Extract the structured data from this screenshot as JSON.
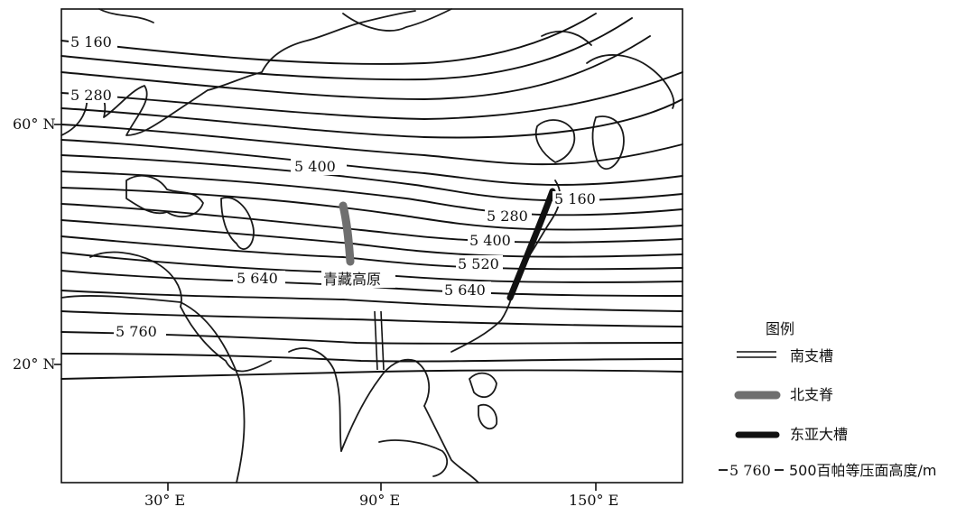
{
  "map": {
    "isoline_labels": {
      "l5160_top": "5 160",
      "l5280_left": "5 280",
      "l5400_mid": "5 400",
      "l5640_left": "5 640",
      "l5760_left": "5 760",
      "l5160_right": "5 160",
      "l5280_right": "5 280",
      "l5400_right": "5 400",
      "l5520_right": "5 520",
      "l5640_right": "5 640"
    },
    "plateau_label": "青藏高原",
    "lat_labels": {
      "lat60": "60° N",
      "lat20": "20° N"
    },
    "lon_labels": {
      "lon30": "30° E",
      "lon90": "90° E",
      "lon150": "150° E"
    }
  },
  "legend": {
    "title": "图例",
    "items": [
      {
        "symbol": "double-line-icon",
        "label": "南支槽"
      },
      {
        "symbol": "gray-thick-line-icon",
        "label": "北支脊"
      },
      {
        "symbol": "black-thick-line-icon",
        "label": "东亚大槽"
      },
      {
        "symbol_text": "5 760",
        "label": "500百帕等压面高度/m"
      }
    ]
  },
  "colors": {
    "line": "#111111",
    "ridge": "#6f6f6f",
    "background": "#ffffff"
  }
}
